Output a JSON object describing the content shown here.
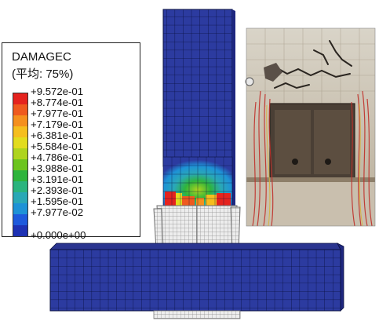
{
  "legend": {
    "title": "DAMAGEC",
    "subtitle": "(平均: 75%)",
    "labels": [
      "+9.572e-01",
      "+8.774e-01",
      "+7.977e-01",
      "+7.179e-01",
      "+6.381e-01",
      "+5.584e-01",
      "+4.786e-01",
      "+3.988e-01",
      "+3.191e-01",
      "+2.393e-01",
      "+1.595e-01",
      "+7.977e-02",
      "+0.000e+00"
    ],
    "band_colors": [
      "#e5231e",
      "#ef5a1e",
      "#f5901e",
      "#f5be1e",
      "#e2dc1e",
      "#aed41e",
      "#6cc41e",
      "#2eb43c",
      "#2bb47e",
      "#2aa8b6",
      "#1e92d6",
      "#1e5adc",
      "#1e32b4"
    ]
  },
  "colors": {
    "mesh_fill": "#2c3ba0",
    "mesh_line": "#0a1040",
    "frame_mesh": "#9a9a9a"
  }
}
